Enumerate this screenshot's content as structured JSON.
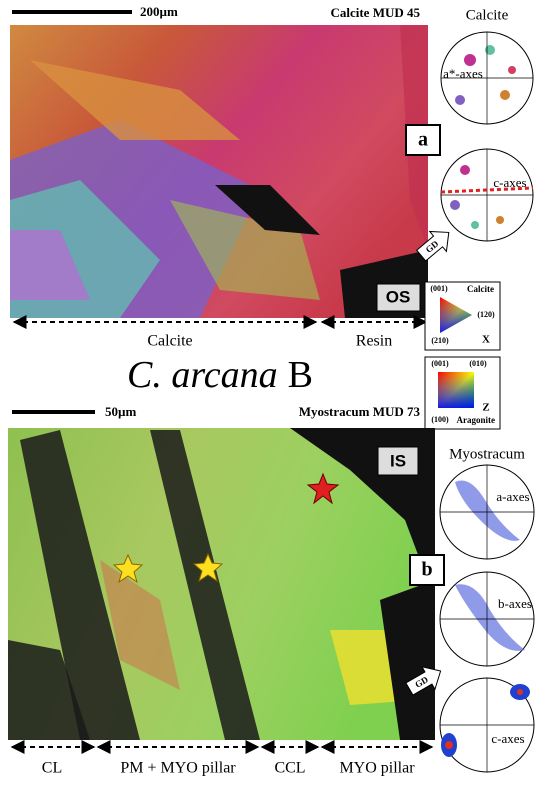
{
  "panel_a": {
    "scale_bar": "200µm",
    "sample": "Calcite MUD 45",
    "panel_label": "a",
    "surface_label": "OS",
    "growth_direction": "GD",
    "zones": [
      "Calcite",
      "Resin"
    ],
    "pole_figures": {
      "title": "Calcite",
      "labels": [
        "a*-axes",
        "c-axes"
      ]
    }
  },
  "keys": [
    {
      "corners": [
        "(001)",
        "(120)",
        "(210)"
      ],
      "mineral": "Calcite",
      "direction": "X"
    },
    {
      "corners": [
        "(001)",
        "(010)",
        "(100)"
      ],
      "mineral": "Aragonite",
      "direction": "Z"
    }
  ],
  "title": {
    "species": "C. arcana",
    "suffix": "B"
  },
  "panel_b": {
    "scale_bar": "50µm",
    "sample": "Myostracum MUD 73",
    "panel_label": "b",
    "surface_label": "IS",
    "growth_direction": "GD",
    "zones": [
      "CL",
      "PM + MYO pillar",
      "CCL",
      "MYO pillar"
    ],
    "pole_figures": {
      "title": "Myostracum",
      "labels": [
        "a-axes",
        "b-axes",
        "c-axes"
      ]
    }
  }
}
